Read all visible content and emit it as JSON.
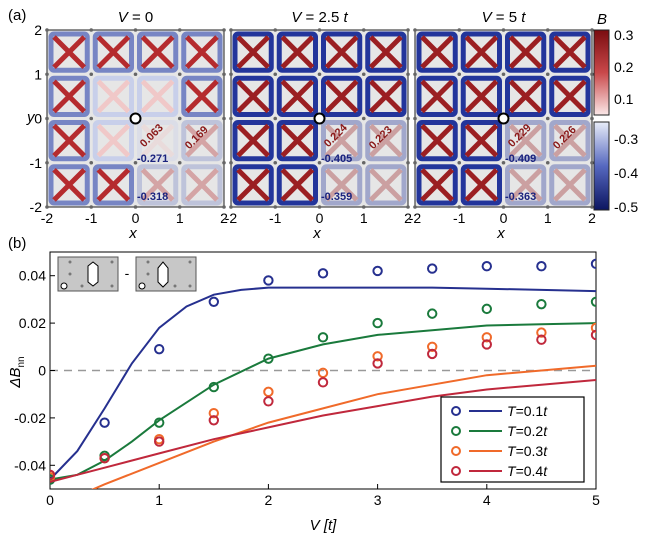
{
  "panel_a": {
    "label": "(a)",
    "titles": [
      "V = 0",
      "V = 2.5 t",
      "V = 5 t"
    ],
    "title_parts": [
      {
        "var": "V",
        "eq": " = 0",
        "unit": ""
      },
      {
        "var": "V",
        "eq": " = 2.5 ",
        "unit": "t"
      },
      {
        "var": "V",
        "eq": " = 5 ",
        "unit": "t"
      }
    ],
    "xlabel": "x",
    "ylabel": "y",
    "x_ticks": [
      "-2",
      "-1",
      "0",
      "1",
      "2"
    ],
    "y_ticks": [
      "2",
      "1",
      "0",
      "-1",
      "-2"
    ],
    "colorbar": {
      "label": "B",
      "pos_ticks": [
        "0.3",
        "0.2",
        "0.1"
      ],
      "neg_ticks": [
        "-0.3",
        "-0.4",
        "-0.5"
      ],
      "pos_color": "#8b1a1a",
      "neg_color": "#1a237e"
    },
    "annotations": [
      {
        "red1": "0.063",
        "red2": "0.169",
        "blue1": "-0.271",
        "blue2": "-0.318"
      },
      {
        "red1": "0.224",
        "red2": "0.223",
        "blue1": "-0.405",
        "blue2": "-0.359"
      },
      {
        "red1": "0.229",
        "red2": "0.226",
        "blue1": "-0.409",
        "blue2": "-0.363"
      }
    ]
  },
  "panel_b": {
    "label": "(b)",
    "inset_minus": "-",
    "chart_data": {
      "type": "scatter",
      "xlabel": "V [t]",
      "ylabel": "ΔB_nn",
      "xlim": [
        0,
        5
      ],
      "ylim": [
        -0.05,
        0.05
      ],
      "x_ticks": [
        0,
        1,
        2,
        3,
        4,
        5
      ],
      "y_ticks": [
        0.04,
        0.02,
        0,
        -0.02,
        -0.04
      ],
      "y_tick_labels": [
        "0.04",
        "0.02",
        "0",
        "-0.02",
        "-0.04"
      ],
      "x_tick_labels": [
        "0",
        "1",
        "2",
        "3",
        "4",
        "5"
      ],
      "zero_line": "dashed",
      "legend_position": "bottom-right",
      "series": [
        {
          "name": "T=0.1t",
          "name_var": "T",
          "name_val": "=0.1",
          "name_unit": "t",
          "color": "#26308f",
          "x": [
            0,
            0.5,
            1,
            1.5,
            2,
            2.5,
            3,
            3.5,
            4,
            4.5,
            5
          ],
          "y": [
            -0.046,
            -0.022,
            0.009,
            0.029,
            0.038,
            0.041,
            0.042,
            0.043,
            0.044,
            0.044,
            0.045
          ],
          "fit_x": [
            0,
            0.25,
            0.5,
            0.75,
            1,
            1.25,
            1.5,
            1.75,
            2,
            2.5,
            3,
            3.5,
            4,
            4.5,
            5
          ],
          "fit_y": [
            -0.046,
            -0.034,
            -0.016,
            0.003,
            0.018,
            0.027,
            0.032,
            0.034,
            0.035,
            0.035,
            0.035,
            0.035,
            0.0345,
            0.034,
            0.0335
          ]
        },
        {
          "name": "T=0.2t",
          "name_var": "T",
          "name_val": "=0.2",
          "name_unit": "t",
          "color": "#1a7a3c",
          "x": [
            0,
            0.5,
            1,
            1.5,
            2,
            2.5,
            3,
            3.5,
            4,
            4.5,
            5
          ],
          "y": [
            -0.046,
            -0.036,
            -0.022,
            -0.007,
            0.005,
            0.014,
            0.02,
            0.024,
            0.026,
            0.028,
            0.029
          ],
          "fit_x": [
            0,
            0.25,
            0.5,
            0.75,
            1,
            1.5,
            2,
            2.5,
            3,
            3.5,
            4,
            4.5,
            5
          ],
          "fit_y": [
            -0.046,
            -0.044,
            -0.038,
            -0.03,
            -0.021,
            -0.006,
            0.005,
            0.011,
            0.015,
            0.017,
            0.019,
            0.0195,
            0.02
          ]
        },
        {
          "name": "T=0.3t",
          "name_var": "T",
          "name_val": "=0.3",
          "name_unit": "t",
          "color": "#f06a2a",
          "x": [
            0,
            0.5,
            1,
            1.5,
            2,
            2.5,
            3,
            3.5,
            4,
            4.5,
            5
          ],
          "y": [
            -0.045,
            -0.037,
            -0.029,
            -0.018,
            -0.009,
            -0.001,
            0.006,
            0.01,
            0.014,
            0.016,
            0.018
          ],
          "fit_x": [
            0,
            0.5,
            1,
            1.5,
            2,
            2.5,
            3,
            3.5,
            4,
            4.5,
            5
          ],
          "fit_y": [
            -0.058,
            -0.048,
            -0.039,
            -0.03,
            -0.022,
            -0.016,
            -0.01,
            -0.006,
            -0.002,
            0.0,
            0.002
          ]
        },
        {
          "name": "T=0.4t",
          "name_var": "T",
          "name_val": "=0.4",
          "name_unit": "t",
          "color": "#c0283c",
          "x": [
            0,
            0.5,
            1,
            1.5,
            2,
            2.5,
            3,
            3.5,
            4,
            4.5,
            5
          ],
          "y": [
            -0.044,
            -0.037,
            -0.03,
            -0.021,
            -0.013,
            -0.005,
            0.003,
            0.007,
            0.011,
            0.013,
            0.015
          ],
          "fit_x": [
            0,
            0.5,
            1,
            1.5,
            2,
            2.5,
            3,
            3.5,
            4,
            4.5,
            5
          ],
          "fit_y": [
            -0.047,
            -0.041,
            -0.035,
            -0.029,
            -0.024,
            -0.019,
            -0.015,
            -0.011,
            -0.008,
            -0.006,
            -0.004
          ]
        }
      ]
    }
  }
}
